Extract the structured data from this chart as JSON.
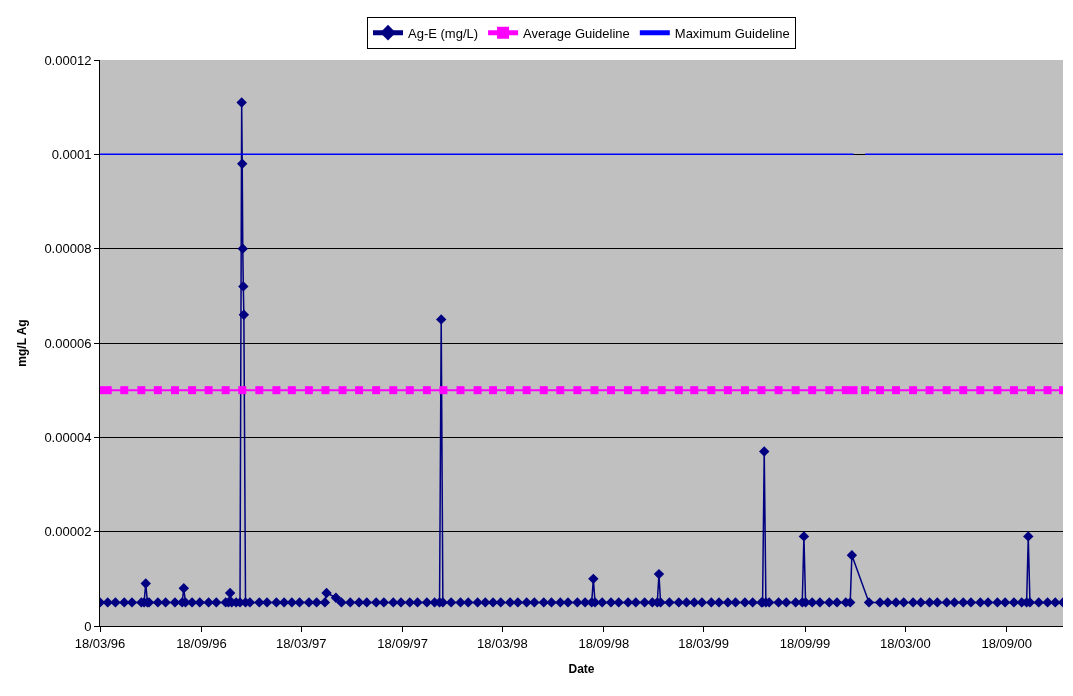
{
  "chart_data": {
    "type": "line",
    "xlabel": "Date",
    "ylabel": "mg/L Ag",
    "xlim": [
      "1996-03-18",
      "2000-12-29"
    ],
    "xticks": [
      {
        "value": "1996-03-18",
        "label": "18/03/96"
      },
      {
        "value": "1996-09-18",
        "label": "18/09/96"
      },
      {
        "value": "1997-03-18",
        "label": "18/03/97"
      },
      {
        "value": "1997-09-18",
        "label": "18/09/97"
      },
      {
        "value": "1998-03-18",
        "label": "18/03/98"
      },
      {
        "value": "1998-09-18",
        "label": "18/09/98"
      },
      {
        "value": "1999-03-18",
        "label": "18/03/99"
      },
      {
        "value": "1999-09-18",
        "label": "18/09/99"
      },
      {
        "value": "2000-03-18",
        "label": "18/03/00"
      },
      {
        "value": "2000-09-18",
        "label": "18/09/00"
      }
    ],
    "ylim": [
      0,
      0.00012
    ],
    "yticks": [
      0,
      {
        "value": 2e-05,
        "label": "0.00002"
      },
      {
        "value": 4e-05,
        "label": "0.00004"
      },
      {
        "value": 6e-05,
        "label": "0.00006"
      },
      {
        "value": 8e-05,
        "label": "0.00008"
      },
      {
        "value": 0.0001,
        "label": "0.0001"
      },
      {
        "value": 0.00012,
        "label": "0.00012"
      }
    ],
    "grid": "y",
    "legend": "top",
    "line_style": "solid",
    "x": [
      "1996-03-18",
      "1996-04-01",
      "1996-05-01",
      "1996-06-01",
      "1996-07-01",
      "1996-08-01",
      "1996-09-01",
      "1996-10-01",
      "1996-11-01",
      "1996-12-01",
      "1997-01-01",
      "1997-02-01",
      "1997-03-01",
      "1997-04-01",
      "1997-05-01",
      "1997-06-01",
      "1997-07-01",
      "1997-08-01",
      "1997-09-01",
      "1997-10-01",
      "1997-11-01",
      "1997-12-01",
      "1998-01-01",
      "1998-02-01",
      "1998-03-01",
      "1998-04-01",
      "1998-05-01",
      "1998-06-01",
      "1998-07-01",
      "1998-08-01",
      "1998-09-01",
      "1998-10-01",
      "1998-11-01",
      "1998-12-01",
      "1999-01-01",
      "1999-02-01",
      "1999-03-01",
      "1999-04-01",
      "1999-05-01",
      "1999-06-01",
      "1999-07-01",
      "1999-08-01",
      "1999-09-01",
      "1999-10-01",
      "1999-11-01",
      "1999-12-01",
      "1999-12-15",
      "1999-12-29",
      "2000-01-05",
      "2000-02-01",
      "2000-03-01",
      "2000-04-01",
      "2000-05-01",
      "2000-06-01",
      "2000-07-01",
      "2000-08-01",
      "2000-09-01",
      "2000-10-01",
      "2000-11-01",
      "2000-12-01",
      "2000-12-29"
    ],
    "series": [
      {
        "name": "Ag-E (mg/L)",
        "color": "#000080",
        "marker": "diamond",
        "x": [
          "1996-03-18",
          "1996-04-01",
          "1996-04-15",
          "1996-05-01",
          "1996-05-15",
          "1996-06-01",
          "1996-06-06",
          "1996-06-09",
          "1996-06-12",
          "1996-06-15",
          "1996-07-01",
          "1996-07-15",
          "1996-08-01",
          "1996-08-14",
          "1996-08-17",
          "1996-08-20",
          "1996-09-01",
          "1996-09-15",
          "1996-10-01",
          "1996-10-15",
          "1996-11-01",
          "1996-11-06",
          "1996-11-09",
          "1996-11-12",
          "1996-11-20",
          "1996-11-27",
          "1996-11-30",
          "1996-12-01",
          "1996-12-02",
          "1996-12-03",
          "1996-12-04",
          "1996-12-07",
          "1996-12-15",
          "1997-01-01",
          "1997-01-15",
          "1997-02-01",
          "1997-02-15",
          "1997-03-01",
          "1997-03-15",
          "1997-04-01",
          "1997-04-15",
          "1997-04-30",
          "1997-05-03",
          "1997-05-20",
          "1997-05-30",
          "1997-06-15",
          "1997-07-01",
          "1997-07-15",
          "1997-08-01",
          "1997-08-15",
          "1997-09-01",
          "1997-09-15",
          "1997-10-01",
          "1997-10-15",
          "1997-11-01",
          "1997-11-15",
          "1997-11-24",
          "1997-11-27",
          "1997-11-30",
          "1997-12-15",
          "1998-01-01",
          "1998-01-15",
          "1998-02-01",
          "1998-02-15",
          "1998-03-01",
          "1998-03-15",
          "1998-04-01",
          "1998-04-15",
          "1998-05-01",
          "1998-05-15",
          "1998-06-01",
          "1998-06-15",
          "1998-07-01",
          "1998-07-15",
          "1998-08-01",
          "1998-08-15",
          "1998-08-27",
          "1998-08-30",
          "1998-09-02",
          "1998-09-15",
          "1998-10-01",
          "1998-10-15",
          "1998-11-01",
          "1998-11-15",
          "1998-12-01",
          "1998-12-15",
          "1998-12-24",
          "1998-12-27",
          "1998-12-30",
          "1999-01-15",
          "1999-02-01",
          "1999-02-15",
          "1999-03-01",
          "1999-03-15",
          "1999-04-01",
          "1999-04-15",
          "1999-05-01",
          "1999-05-15",
          "1999-06-01",
          "1999-06-15",
          "1999-07-01",
          "1999-07-03",
          "1999-07-06",
          "1999-07-09",
          "1999-07-15",
          "1999-08-01",
          "1999-08-15",
          "1999-09-01",
          "1999-09-13",
          "1999-09-16",
          "1999-09-19",
          "1999-10-01",
          "1999-10-15",
          "1999-11-01",
          "1999-11-15",
          "1999-12-01",
          "1999-12-09",
          "1999-12-12",
          "2000-01-12",
          "2000-02-01",
          "2000-02-15",
          "2000-03-01",
          "2000-03-15",
          "2000-04-01",
          "2000-04-15",
          "2000-05-01",
          "2000-05-15",
          "2000-06-01",
          "2000-06-15",
          "2000-07-01",
          "2000-07-15",
          "2000-08-01",
          "2000-08-15",
          "2000-09-01",
          "2000-09-15",
          "2000-10-01",
          "2000-10-15",
          "2000-10-24",
          "2000-10-27",
          "2000-10-30",
          "2000-11-15",
          "2000-12-01",
          "2000-12-15",
          "2000-12-29"
        ],
        "values": [
          5e-06,
          5e-06,
          5e-06,
          5e-06,
          5e-06,
          5e-06,
          5e-06,
          9e-06,
          5e-06,
          5e-06,
          5e-06,
          5e-06,
          5e-06,
          5e-06,
          8e-06,
          5e-06,
          5e-06,
          5e-06,
          5e-06,
          5e-06,
          5e-06,
          5e-06,
          7e-06,
          5e-06,
          5e-06,
          5e-06,
          0.000111,
          9.8e-05,
          8e-05,
          7.2e-05,
          6.6e-05,
          5e-06,
          5e-06,
          5e-06,
          5e-06,
          5e-06,
          5e-06,
          5e-06,
          5e-06,
          5e-06,
          5e-06,
          5e-06,
          7e-06,
          6e-06,
          5e-06,
          5e-06,
          5e-06,
          5e-06,
          5e-06,
          5e-06,
          5e-06,
          5e-06,
          5e-06,
          5e-06,
          5e-06,
          5e-06,
          5e-06,
          6.5e-05,
          5e-06,
          5e-06,
          5e-06,
          5e-06,
          5e-06,
          5e-06,
          5e-06,
          5e-06,
          5e-06,
          5e-06,
          5e-06,
          5e-06,
          5e-06,
          5e-06,
          5e-06,
          5e-06,
          5e-06,
          5e-06,
          5e-06,
          1e-05,
          5e-06,
          5e-06,
          5e-06,
          5e-06,
          5e-06,
          5e-06,
          5e-06,
          5e-06,
          5e-06,
          1.1e-05,
          5e-06,
          5e-06,
          5e-06,
          5e-06,
          5e-06,
          5e-06,
          5e-06,
          5e-06,
          5e-06,
          5e-06,
          5e-06,
          5e-06,
          5e-06,
          5e-06,
          3.7e-05,
          5e-06,
          5e-06,
          5e-06,
          5e-06,
          5e-06,
          5e-06,
          1.9e-05,
          5e-06,
          5e-06,
          5e-06,
          5e-06,
          5e-06,
          5e-06,
          5e-06,
          1.5e-05,
          5e-06,
          5e-06,
          5e-06,
          5e-06,
          5e-06,
          5e-06,
          5e-06,
          5e-06,
          5e-06,
          5e-06,
          5e-06,
          5e-06,
          5e-06,
          5e-06,
          5e-06,
          5e-06,
          5e-06,
          5e-06,
          5e-06,
          5e-06,
          1.9e-05,
          5e-06,
          5e-06,
          5e-06,
          5e-06,
          5e-06
        ]
      },
      {
        "name": "Average Guideline",
        "color": "#ff00ff",
        "marker": "square",
        "values": [
          5e-05,
          5e-05,
          5e-05,
          5e-05,
          5e-05,
          5e-05,
          5e-05,
          5e-05,
          5e-05,
          5e-05,
          5e-05,
          5e-05,
          5e-05,
          5e-05,
          5e-05,
          5e-05,
          5e-05,
          5e-05,
          5e-05,
          5e-05,
          5e-05,
          5e-05,
          5e-05,
          5e-05,
          5e-05,
          5e-05,
          5e-05,
          5e-05,
          5e-05,
          5e-05,
          5e-05,
          5e-05,
          5e-05,
          5e-05,
          5e-05,
          5e-05,
          5e-05,
          5e-05,
          5e-05,
          5e-05,
          5e-05,
          5e-05,
          5e-05,
          5e-05,
          5e-05,
          5e-05,
          5e-05,
          null,
          5e-05,
          5e-05,
          5e-05,
          5e-05,
          5e-05,
          5e-05,
          5e-05,
          5e-05,
          5e-05,
          5e-05,
          5e-05,
          5e-05,
          5e-05
        ]
      },
      {
        "name": "Maximum Guideline",
        "color": "#0000ff",
        "marker": "none",
        "values": [
          0.0001,
          0.0001,
          0.0001,
          0.0001,
          0.0001,
          0.0001,
          0.0001,
          0.0001,
          0.0001,
          0.0001,
          0.0001,
          0.0001,
          0.0001,
          0.0001,
          0.0001,
          0.0001,
          0.0001,
          0.0001,
          0.0001,
          0.0001,
          0.0001,
          0.0001,
          0.0001,
          0.0001,
          0.0001,
          0.0001,
          0.0001,
          0.0001,
          0.0001,
          0.0001,
          0.0001,
          0.0001,
          0.0001,
          0.0001,
          0.0001,
          0.0001,
          0.0001,
          0.0001,
          0.0001,
          0.0001,
          0.0001,
          0.0001,
          0.0001,
          0.0001,
          0.0001,
          0.0001,
          0.0001,
          null,
          0.0001,
          0.0001,
          0.0001,
          0.0001,
          0.0001,
          0.0001,
          0.0001,
          0.0001,
          0.0001,
          0.0001,
          0.0001,
          0.0001,
          0.0001
        ]
      }
    ]
  }
}
